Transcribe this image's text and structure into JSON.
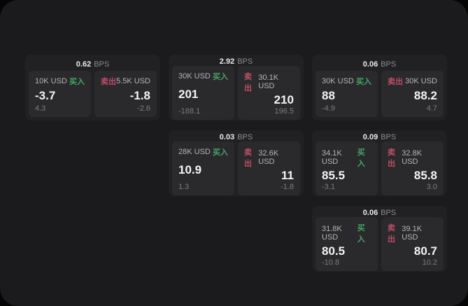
{
  "labels": {
    "bps_unit": "BPS",
    "buy": "买入",
    "sell": "卖出"
  },
  "colors": {
    "page_background": "#1b1b1d",
    "card_background": "#212124",
    "panel_background": "#2a2a2d",
    "buy_green": "#46a566",
    "sell_red": "#bd4d66"
  },
  "cards": [
    {
      "bps": "0.62",
      "row": 1,
      "col": 1,
      "buy": {
        "size": "10K USD",
        "price": "-3.7",
        "delta": "4.3"
      },
      "sell": {
        "size": "5.5K USD",
        "price": "-1.8",
        "delta": "-2.6"
      }
    },
    {
      "bps": "2.92",
      "row": 1,
      "col": 2,
      "buy": {
        "size": "30K USD",
        "price": "201",
        "delta": "-188.1"
      },
      "sell": {
        "size": "30.1K USD",
        "price": "210",
        "delta": "196.5"
      }
    },
    {
      "bps": "0.06",
      "row": 1,
      "col": 3,
      "buy": {
        "size": "30K USD",
        "price": "88",
        "delta": "-4.9"
      },
      "sell": {
        "size": "30K USD",
        "price": "88.2",
        "delta": "4.7"
      }
    },
    {
      "bps": "0.03",
      "row": 2,
      "col": 2,
      "buy": {
        "size": "28K USD",
        "price": "10.9",
        "delta": "1.3"
      },
      "sell": {
        "size": "32.6K USD",
        "price": "11",
        "delta": "-1.8"
      }
    },
    {
      "bps": "0.09",
      "row": 2,
      "col": 3,
      "buy": {
        "size": "34.1K USD",
        "price": "85.5",
        "delta": "-3.1"
      },
      "sell": {
        "size": "32.8K USD",
        "price": "85.8",
        "delta": "3.0"
      }
    },
    {
      "bps": "0.06",
      "row": 3,
      "col": 3,
      "buy": {
        "size": "31.8K USD",
        "price": "80.5",
        "delta": "-10.8"
      },
      "sell": {
        "size": "39.1K USD",
        "price": "80.7",
        "delta": "10.2"
      }
    }
  ]
}
